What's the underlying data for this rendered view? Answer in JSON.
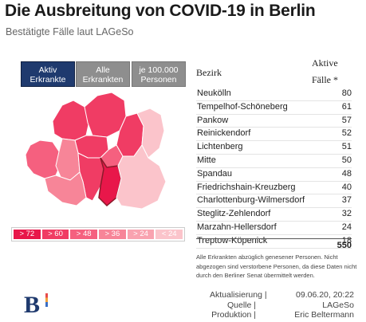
{
  "header": {
    "title": "Die Ausbreitung von COVID-19 in Berlin",
    "subtitle": "Bestätigte Fälle laut LAGeSo"
  },
  "buttons": [
    {
      "line1": "Aktiv",
      "line2": "Erkrankte",
      "active": true
    },
    {
      "line1": "Alle",
      "line2": "Erkrankten",
      "active": false
    },
    {
      "line1": "je 100.000",
      "line2": "Personen",
      "active": false
    }
  ],
  "legend": [
    {
      "label": "> 72",
      "color": "#e8174a"
    },
    {
      "label": "> 60",
      "color": "#f03c64"
    },
    {
      "label": "> 48",
      "color": "#f5607f"
    },
    {
      "label": "> 36",
      "color": "#f78598"
    },
    {
      "label": "> 24",
      "color": "#f9a3b0"
    },
    {
      "label": "< 24",
      "color": "#fbc4cb"
    }
  ],
  "table": {
    "col_district": "Bezirk",
    "col_value_line1": "Aktive",
    "col_value_line2": "Fälle *",
    "total": "550"
  },
  "chart_data": {
    "type": "table",
    "title": "Die Ausbreitung von COVID-19 in Berlin",
    "subtitle": "Bestätigte Fälle laut LAGeSo",
    "categories": [
      "Neukölln",
      "Tempelhof-Schöneberg",
      "Pankow",
      "Reinickendorf",
      "Lichtenberg",
      "Mitte",
      "Spandau",
      "Friedrichshain-Kreuzberg",
      "Charlottenburg-Wilmersdorf",
      "Steglitz-Zehlendorf",
      "Marzahn-Hellersdorf",
      "Treptow-Köpenick"
    ],
    "values": [
      80,
      61,
      57,
      52,
      51,
      50,
      48,
      40,
      37,
      32,
      24,
      18
    ],
    "total": 550
  },
  "footer": {
    "note": "Alle Erkrankten abzüglich genesener Personen. Nicht abgezogen sind verstorbene Personen, da diese Daten nicht durch den Berliner Senat übermittelt werden.",
    "labels": [
      "Aktualisierung |",
      "Quelle |",
      "Produktion |"
    ],
    "values": [
      "09.06.20, 20:22",
      "LAGeSo",
      "Eric Beltermann"
    ],
    "logo": "B"
  }
}
